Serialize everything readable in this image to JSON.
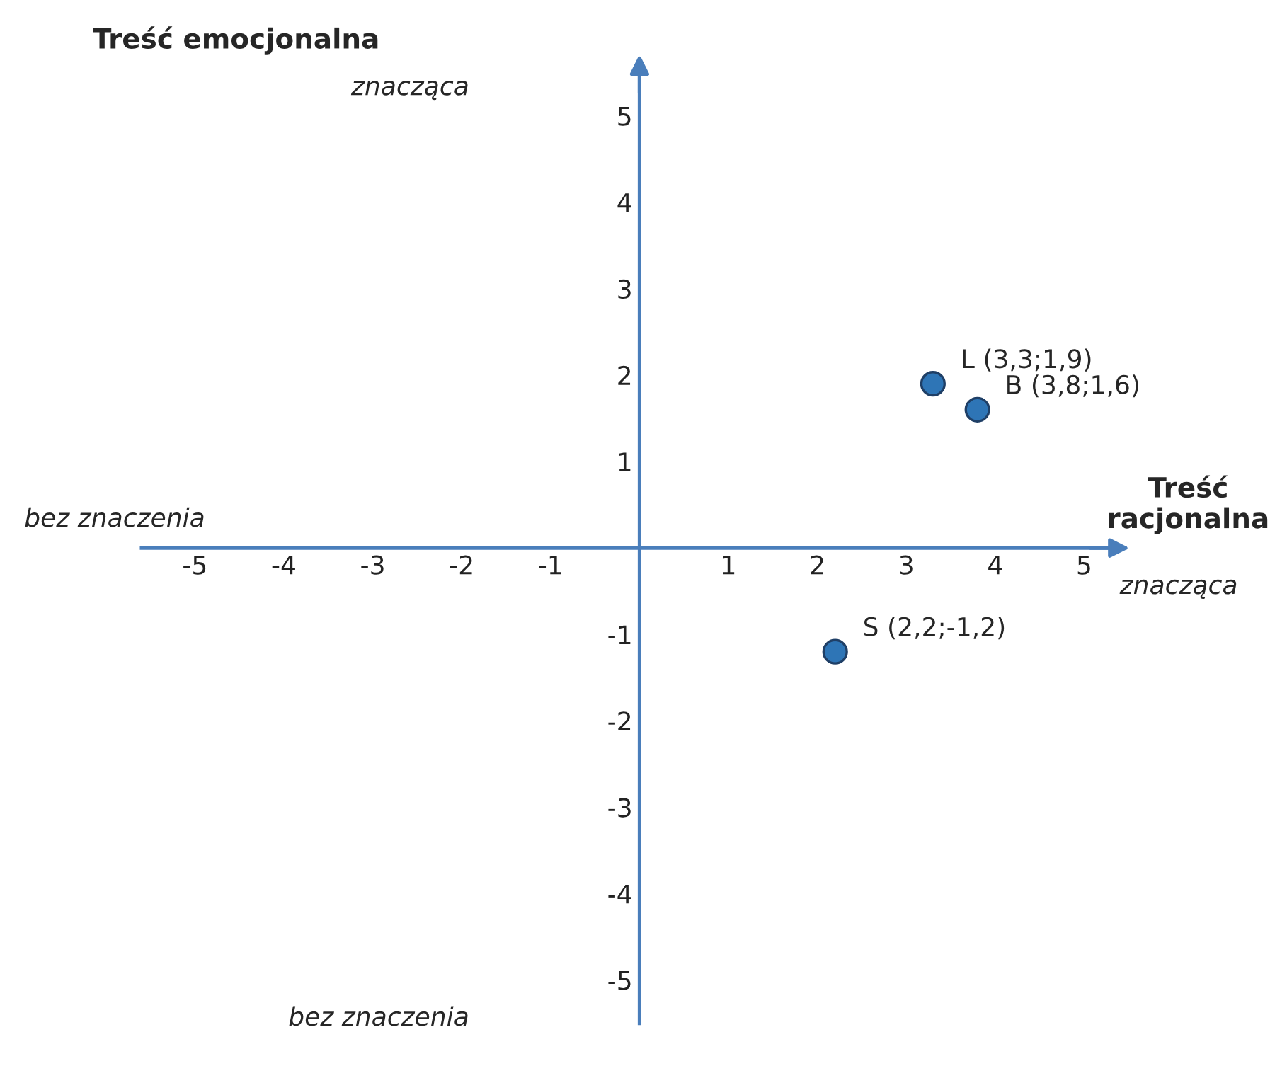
{
  "chart_data": {
    "type": "scatter",
    "xlabel": "Treść racjonalna",
    "ylabel": "Treść emocjonalna",
    "x": [
      3.3,
      3.8,
      2.2
    ],
    "series": [
      {
        "color": "#2e75b6",
        "values": [
          1.9,
          1.6,
          -1.2
        ]
      }
    ],
    "xlim": [
      -5.6,
      5.4
    ],
    "ylim": [
      -5.5,
      5.6
    ],
    "xticks": [
      -5,
      -4,
      -3,
      -2,
      -1,
      1,
      2,
      3,
      4,
      5
    ],
    "yticks": [
      -5,
      -4,
      -3,
      -2,
      -1,
      1,
      2,
      3,
      4,
      5
    ],
    "marker": "circle",
    "grid": false,
    "legend": false,
    "annotations": [
      {
        "text": "L (3,3;1,9)",
        "x": 3.3,
        "y": 1.9
      },
      {
        "text": "B (3,8;1,6)",
        "x": 3.8,
        "y": 1.6
      },
      {
        "text": "S (2,2;-1,2)",
        "x": 2.2,
        "y": -1.2
      },
      "znacząca",
      "bez znaczenia",
      "znacząca",
      "bez znaczenia"
    ]
  }
}
